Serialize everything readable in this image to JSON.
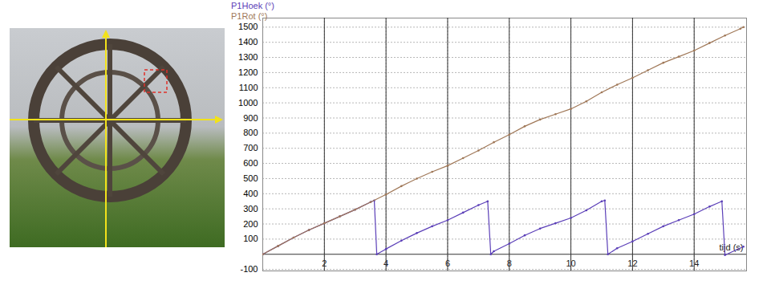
{
  "chart_data": {
    "type": "line",
    "x_label": "tijd (s)",
    "xlim": [
      0,
      15.7
    ],
    "xticks": [
      2,
      4,
      6,
      8,
      10,
      12,
      14
    ],
    "ylim": [
      -110,
      1560
    ],
    "yticks": [
      -100,
      100,
      200,
      300,
      400,
      500,
      600,
      700,
      800,
      900,
      1000,
      1100,
      1200,
      1300,
      1400,
      1500
    ],
    "grid": true,
    "legend": "top-left",
    "marker": "dot",
    "series": [
      {
        "name": "P1Hoek (°)",
        "color": "#5b3fb8",
        "x": [
          0,
          0.5,
          1,
          1.5,
          2,
          2.5,
          3,
          3.5,
          3.62,
          3.7,
          4,
          4.5,
          5,
          5.5,
          6,
          6.5,
          7,
          7.3,
          7.4,
          7.5,
          8,
          8.5,
          9,
          9.5,
          10,
          10.5,
          11,
          11.1,
          11.2,
          11.5,
          12,
          12.5,
          13,
          13.5,
          14,
          14.5,
          14.9,
          15,
          15.6
        ],
        "values": [
          0,
          55,
          110,
          160,
          205,
          250,
          295,
          345,
          355,
          0,
          35,
          90,
          140,
          185,
          225,
          275,
          325,
          350,
          0,
          20,
          70,
          125,
          170,
          205,
          240,
          290,
          350,
          355,
          0,
          40,
          85,
          135,
          185,
          225,
          265,
          315,
          350,
          -5,
          50
        ]
      },
      {
        "name": "P1Rot (°)",
        "color": "#a07858",
        "x": [
          0,
          0.5,
          1,
          1.5,
          2,
          2.5,
          3,
          3.5,
          4,
          4.5,
          5,
          5.5,
          6,
          6.5,
          7,
          7.5,
          8,
          8.5,
          9,
          9.5,
          10,
          10.5,
          11,
          11.5,
          12,
          12.5,
          13,
          13.5,
          14,
          14.5,
          15,
          15.5,
          15.6
        ],
        "values": [
          0,
          55,
          110,
          160,
          205,
          250,
          295,
          345,
          395,
          450,
          500,
          545,
          585,
          635,
          685,
          740,
          790,
          845,
          890,
          925,
          960,
          1010,
          1070,
          1120,
          1165,
          1215,
          1265,
          1305,
          1345,
          1395,
          1445,
          1490,
          1500
        ]
      }
    ]
  }
}
